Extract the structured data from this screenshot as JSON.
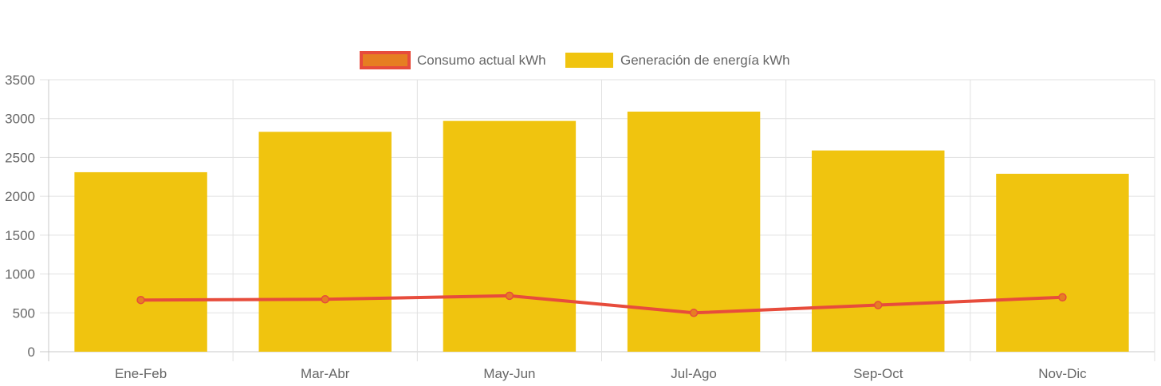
{
  "chart_data": {
    "type": "bar",
    "categories": [
      "Ene-Feb",
      "Mar-Abr",
      "May-Jun",
      "Jul-Ago",
      "Sep-Oct",
      "Nov-Dic"
    ],
    "series": [
      {
        "name": "Generación de energía kWh",
        "type": "bar",
        "color": "#f0c40f",
        "values": [
          2310,
          2830,
          2970,
          3090,
          2590,
          2290
        ]
      },
      {
        "name": "Consumo actual kWh",
        "type": "line",
        "color": "#e74c3c",
        "fill_color": "#e67e22",
        "values": [
          665,
          675,
          720,
          500,
          600,
          700
        ]
      }
    ],
    "legend_order": [
      "Consumo actual kWh",
      "Generación de energía kWh"
    ],
    "ylim": [
      0,
      3500
    ],
    "yticks": [
      "0",
      "500",
      "1000",
      "1500",
      "2000",
      "2500",
      "3000",
      "3500"
    ],
    "grid": true,
    "legend_position": "top-center",
    "title": "",
    "xlabel": "",
    "ylabel": ""
  }
}
